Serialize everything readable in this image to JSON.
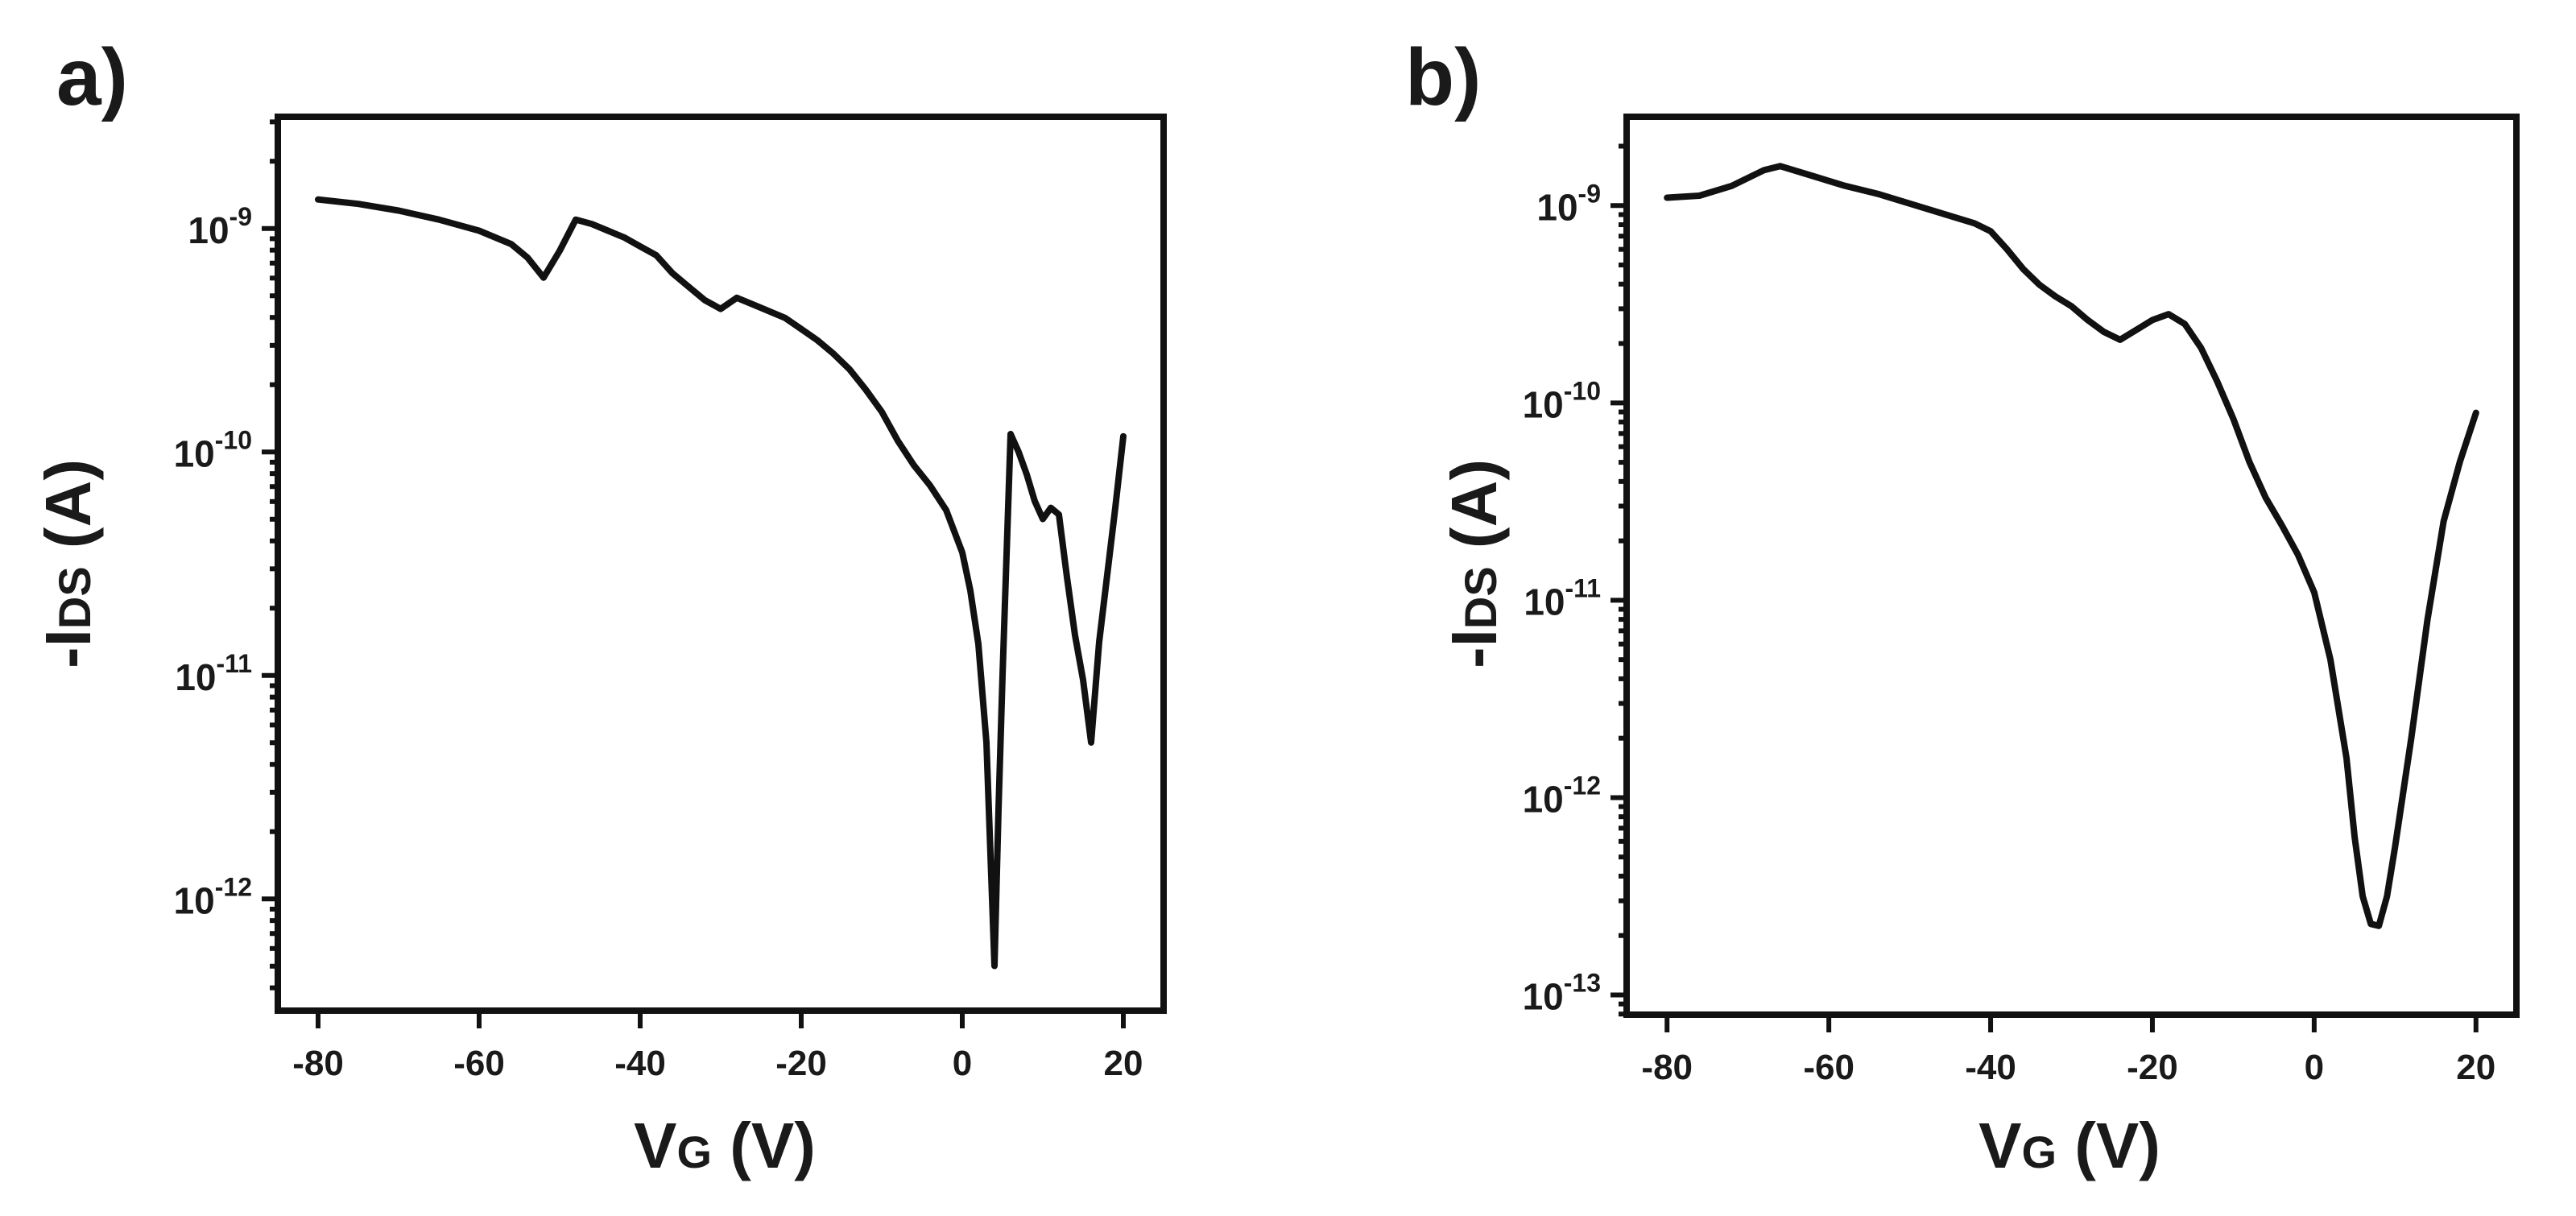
{
  "colors": {
    "line": "#111111",
    "background": "#ffffff"
  },
  "chart_data": [
    {
      "panel_label": "a)",
      "type": "line",
      "xlabel": {
        "main": "V",
        "sub": "G",
        "units": " (V)"
      },
      "ylabel": {
        "prefix": "-I",
        "sub": "DS",
        "units": " (A)"
      },
      "yscale": "log",
      "xlim": [
        -85,
        25
      ],
      "ylim_log10": [
        -12.5,
        -8.5
      ],
      "x_ticks": [
        -80,
        -60,
        -40,
        -20,
        0,
        20
      ],
      "x_tick_labels": [
        "-80",
        "-60",
        "-40",
        "-20",
        "0",
        "20"
      ],
      "y_ticks_log10": [
        -12,
        -11,
        -10,
        -9
      ],
      "y_tick_labels": [
        {
          "base": "10",
          "exp": "-12"
        },
        {
          "base": "10",
          "exp": "-11"
        },
        {
          "base": "10",
          "exp": "-10"
        },
        {
          "base": "10",
          "exp": "-9"
        }
      ],
      "series": [
        {
          "name": "-IDS",
          "x": [
            -80,
            -75,
            -70,
            -65,
            -60,
            -56,
            -54,
            -52,
            -50,
            -48,
            -46,
            -44,
            -42,
            -40,
            -38,
            -36,
            -34,
            -32,
            -30,
            -28,
            -26,
            -24,
            -22,
            -20,
            -18,
            -16,
            -14,
            -12,
            -10,
            -8,
            -6,
            -4,
            -2,
            0,
            1,
            2,
            3,
            3.5,
            4,
            4.5,
            5,
            6,
            7,
            8,
            9,
            10,
            11,
            12,
            13,
            14,
            15,
            16,
            17,
            18,
            19,
            20
          ],
          "log10_y": [
            -8.87,
            -8.89,
            -8.92,
            -8.96,
            -9.01,
            -9.07,
            -9.13,
            -9.22,
            -9.1,
            -8.96,
            -8.98,
            -9.01,
            -9.04,
            -9.08,
            -9.12,
            -9.2,
            -9.26,
            -9.32,
            -9.36,
            -9.31,
            -9.34,
            -9.37,
            -9.4,
            -9.45,
            -9.5,
            -9.56,
            -9.63,
            -9.72,
            -9.82,
            -9.95,
            -10.06,
            -10.15,
            -10.26,
            -10.45,
            -10.62,
            -10.86,
            -11.3,
            -11.8,
            -12.3,
            -11.6,
            -11.0,
            -9.92,
            -10.0,
            -10.1,
            -10.22,
            -10.3,
            -10.25,
            -10.28,
            -10.56,
            -10.82,
            -11.02,
            -11.3,
            -10.85,
            -10.55,
            -10.25,
            -9.93
          ]
        }
      ]
    },
    {
      "panel_label": "b)",
      "type": "line",
      "xlabel": {
        "main": "V",
        "sub": "G",
        "units": " (V)"
      },
      "ylabel": {
        "prefix": "-I",
        "sub": "DS",
        "units": " (A)"
      },
      "yscale": "log",
      "xlim": [
        -85,
        25
      ],
      "ylim_log10": [
        -13.1,
        -8.55
      ],
      "x_ticks": [
        -80,
        -60,
        -40,
        -20,
        0,
        20
      ],
      "x_tick_labels": [
        "-80",
        "-60",
        "-40",
        "-20",
        "0",
        "20"
      ],
      "y_ticks_log10": [
        -13,
        -12,
        -11,
        -10,
        -9
      ],
      "y_tick_labels": [
        {
          "base": "10",
          "exp": "-13"
        },
        {
          "base": "10",
          "exp": "-12"
        },
        {
          "base": "10",
          "exp": "-11"
        },
        {
          "base": "10",
          "exp": "-10"
        },
        {
          "base": "10",
          "exp": "-9"
        }
      ],
      "series": [
        {
          "name": "-IDS",
          "x": [
            -80,
            -76,
            -72,
            -68,
            -66,
            -62,
            -58,
            -54,
            -50,
            -46,
            -42,
            -40,
            -38,
            -36,
            -34,
            -32,
            -30,
            -28,
            -26,
            -24,
            -22,
            -20,
            -18,
            -16,
            -14,
            -12,
            -10,
            -8,
            -6,
            -4,
            -2,
            0,
            2,
            4,
            5,
            6,
            7,
            8,
            9,
            10,
            12,
            14,
            16,
            18,
            20
          ],
          "log10_y": [
            -8.96,
            -8.95,
            -8.9,
            -8.82,
            -8.8,
            -8.85,
            -8.9,
            -8.94,
            -8.99,
            -9.04,
            -9.09,
            -9.13,
            -9.22,
            -9.32,
            -9.4,
            -9.46,
            -9.51,
            -9.58,
            -9.64,
            -9.68,
            -9.63,
            -9.58,
            -9.55,
            -9.6,
            -9.72,
            -9.89,
            -10.08,
            -10.3,
            -10.48,
            -10.62,
            -10.77,
            -10.96,
            -11.3,
            -11.8,
            -12.2,
            -12.5,
            -12.64,
            -12.65,
            -12.5,
            -12.25,
            -11.7,
            -11.1,
            -10.6,
            -10.3,
            -10.05
          ]
        }
      ]
    }
  ]
}
